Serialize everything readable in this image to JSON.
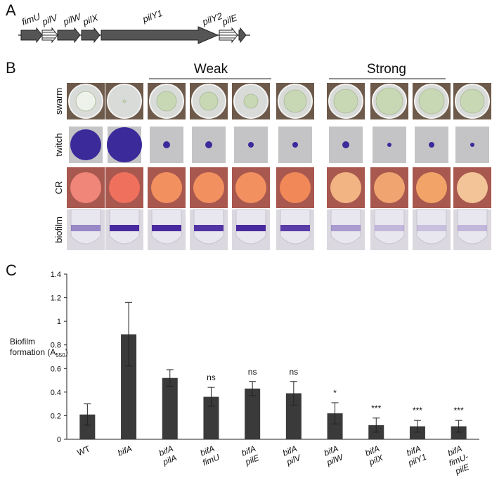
{
  "gene_diagram": {
    "label": "A",
    "genes": [
      "fimU",
      "pilV",
      "pilW",
      "pilX",
      "pilY1",
      "pilY2",
      "pilE"
    ]
  },
  "phenotypes": {
    "label": "B",
    "groups": [
      "Weak",
      "Strong"
    ],
    "rows": [
      "swarm",
      "twitch",
      "CR",
      "biofilm"
    ]
  },
  "chart_panel": {
    "label": "C"
  },
  "chart_data": {
    "type": "bar",
    "y_label": [
      "Biofilm",
      "formation (A",
      "550",
      ")"
    ],
    "categories": [
      [
        "WT"
      ],
      [
        "bifA"
      ],
      [
        "bifA",
        "pilA"
      ],
      [
        "bifA",
        "fimU"
      ],
      [
        "bifA",
        "pilE"
      ],
      [
        "bifA",
        "pilV"
      ],
      [
        "bifA",
        "pilW"
      ],
      [
        "bifA",
        "pilX"
      ],
      [
        "bifA",
        "pilY1"
      ],
      [
        "bifA",
        "fimU-",
        "pilE"
      ]
    ],
    "values": [
      0.21,
      0.89,
      0.52,
      0.36,
      0.43,
      0.39,
      0.22,
      0.12,
      0.11,
      0.11
    ],
    "errors": [
      0.09,
      0.27,
      0.07,
      0.08,
      0.06,
      0.1,
      0.09,
      0.06,
      0.05,
      0.05
    ],
    "annotations": [
      null,
      null,
      null,
      "ns",
      "ns",
      "ns",
      "*",
      "***",
      "***",
      "***"
    ],
    "color": "#3a3a3a",
    "ylim": [
      0,
      1.4
    ],
    "yticks": [
      0,
      0.2,
      0.4,
      0.6,
      0.8,
      1,
      1.2,
      1.4
    ]
  }
}
